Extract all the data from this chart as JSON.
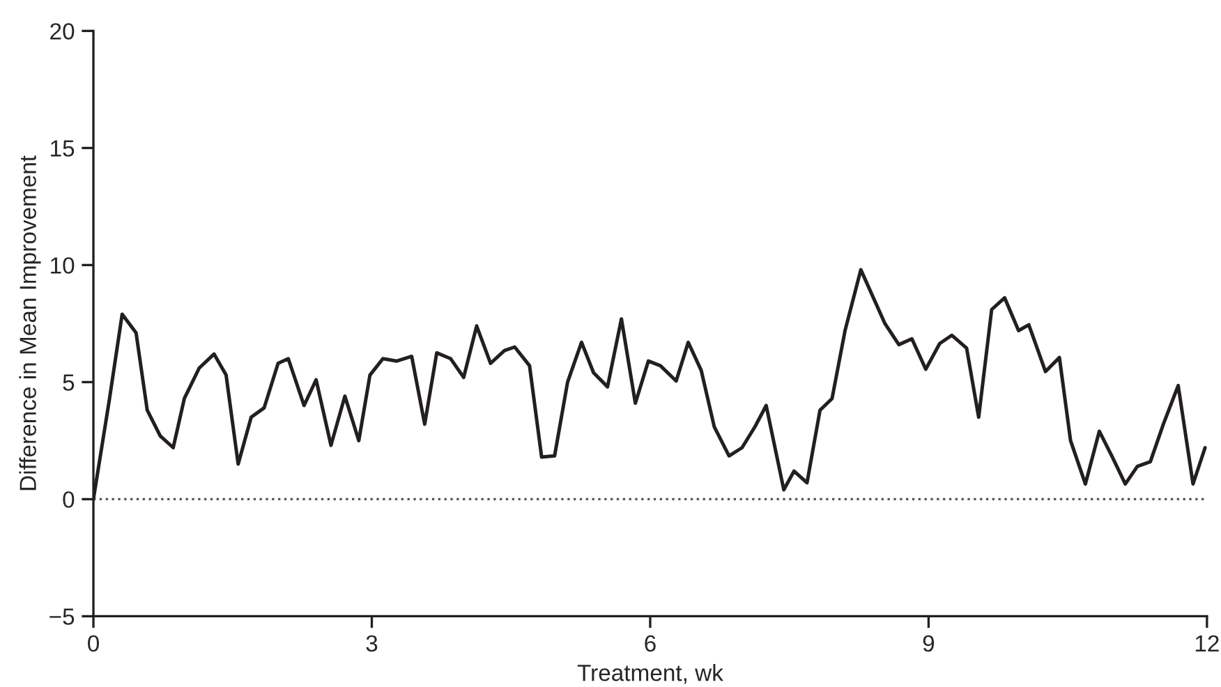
{
  "chart_data": {
    "type": "line",
    "xlabel": "Treatment, wk",
    "ylabel": "Difference in Mean Improvement",
    "x": [
      0,
      0.17,
      0.31,
      0.46,
      0.58,
      0.72,
      0.86,
      0.98,
      1.14,
      1.3,
      1.43,
      1.56,
      1.7,
      1.84,
      1.99,
      2.1,
      2.27,
      2.4,
      2.56,
      2.71,
      2.86,
      2.98,
      3.12,
      3.27,
      3.43,
      3.57,
      3.7,
      3.85,
      3.99,
      4.13,
      4.28,
      4.43,
      4.54,
      4.7,
      4.83,
      4.97,
      5.11,
      5.26,
      5.39,
      5.54,
      5.69,
      5.84,
      5.98,
      6.11,
      6.28,
      6.41,
      6.55,
      6.69,
      6.85,
      6.99,
      7.13,
      7.25,
      7.44,
      7.55,
      7.69,
      7.83,
      7.96,
      8.1,
      8.27,
      8.53,
      8.68,
      8.82,
      8.97,
      9.12,
      9.25,
      9.41,
      9.54,
      9.68,
      9.82,
      9.97,
      10.08,
      10.26,
      10.41,
      10.53,
      10.69,
      10.84,
      10.98,
      11.12,
      11.25,
      11.39,
      11.53,
      11.69,
      11.85,
      11.98
    ],
    "series": [
      {
        "color": "#231f20",
        "values": [
          0,
          4.2,
          7.9,
          7.1,
          3.8,
          2.7,
          2.2,
          4.3,
          5.6,
          6.2,
          5.3,
          1.5,
          3.5,
          3.9,
          5.8,
          6.0,
          4.0,
          5.1,
          2.3,
          4.4,
          2.5,
          5.3,
          6.0,
          5.9,
          6.1,
          3.2,
          6.25,
          6.0,
          5.2,
          7.4,
          5.8,
          6.35,
          6.5,
          5.7,
          1.8,
          1.85,
          5.0,
          6.7,
          5.4,
          4.8,
          7.7,
          4.1,
          5.9,
          5.7,
          5.05,
          6.7,
          5.5,
          3.1,
          1.85,
          2.2,
          3.1,
          4.0,
          0.4,
          1.2,
          0.7,
          3.8,
          4.3,
          7.2,
          9.8,
          7.5,
          6.6,
          6.85,
          5.55,
          6.65,
          7.0,
          6.45,
          3.5,
          8.1,
          8.6,
          7.2,
          7.45,
          5.45,
          6.05,
          2.5,
          0.65,
          2.9,
          1.8,
          0.65,
          1.4,
          1.6,
          3.2,
          4.85,
          0.65,
          2.2
        ]
      }
    ],
    "xlim": [
      0,
      12
    ],
    "xticks": [
      0,
      3,
      6,
      9,
      12
    ],
    "ylim": [
      -5,
      20
    ],
    "yticks": [
      -5,
      0,
      5,
      10,
      15,
      20
    ],
    "ref_lines": [
      {
        "axis": "y",
        "value": 0,
        "line_style": "dotted",
        "color": "#555555"
      }
    ],
    "grid": false,
    "marker": "none",
    "line_style": "solid"
  }
}
